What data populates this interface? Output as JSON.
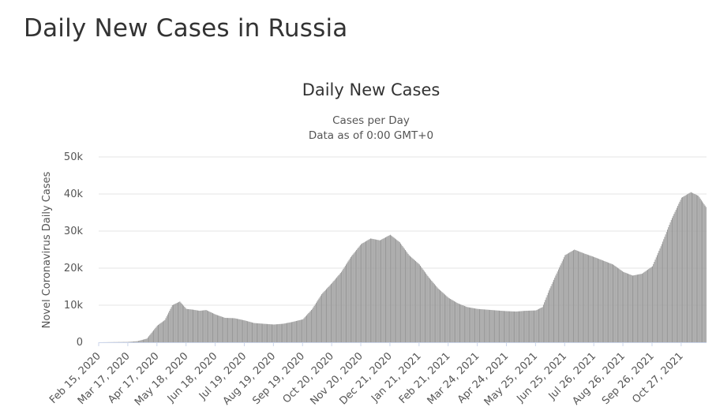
{
  "page": {
    "heading": "Daily New Cases in Russia"
  },
  "chart_data": {
    "type": "bar",
    "title": "Daily New Cases",
    "subtitle_lines": [
      "Cases per Day",
      "Data as of 0:00 GMT+0"
    ],
    "ylabel": "Novel Coronavirus Daily Cases",
    "xlabel": "",
    "ylim": [
      0,
      50000
    ],
    "y_ticks": [
      0,
      10000,
      20000,
      30000,
      40000,
      50000
    ],
    "y_tick_labels": [
      "0",
      "10k",
      "20k",
      "30k",
      "40k",
      "50k"
    ],
    "x_start": "2020-02-15",
    "x_end": "2021-11-22",
    "x_tick_labels": [
      "Feb 15, 2020",
      "Mar 17, 2020",
      "Apr 17, 2020",
      "May 18, 2020",
      "Jun 18, 2020",
      "Jul 19, 2020",
      "Aug 19, 2020",
      "Sep 19, 2020",
      "Oct 20, 2020",
      "Nov 20, 2020",
      "Dec 21, 2020",
      "Jan 21, 2021",
      "Feb 21, 2021",
      "Mar 24, 2021",
      "Apr 24, 2021",
      "May 25, 2021",
      "Jun 25, 2021",
      "Jul 26, 2021",
      "Aug 26, 2021",
      "Sep 26, 2021",
      "Oct 27, 2021"
    ],
    "bar_color": "#9a9a9a",
    "grid": true,
    "legend": "none",
    "x": [
      "2020-02-15",
      "2020-03-17",
      "2020-03-27",
      "2020-04-06",
      "2020-04-17",
      "2020-04-25",
      "2020-05-03",
      "2020-05-11",
      "2020-05-18",
      "2020-05-25",
      "2020-06-01",
      "2020-06-08",
      "2020-06-18",
      "2020-06-28",
      "2020-07-08",
      "2020-07-19",
      "2020-07-29",
      "2020-08-08",
      "2020-08-19",
      "2020-08-29",
      "2020-09-08",
      "2020-09-19",
      "2020-09-29",
      "2020-10-09",
      "2020-10-20",
      "2020-10-30",
      "2020-11-09",
      "2020-11-20",
      "2020-11-30",
      "2020-12-10",
      "2020-12-21",
      "2020-12-26",
      "2020-12-31",
      "2021-01-10",
      "2021-01-21",
      "2021-01-31",
      "2021-02-10",
      "2021-02-21",
      "2021-03-03",
      "2021-03-13",
      "2021-03-24",
      "2021-04-03",
      "2021-04-13",
      "2021-04-24",
      "2021-05-04",
      "2021-05-14",
      "2021-05-25",
      "2021-06-01",
      "2021-06-08",
      "2021-06-15",
      "2021-06-25",
      "2021-07-05",
      "2021-07-15",
      "2021-07-26",
      "2021-08-05",
      "2021-08-15",
      "2021-08-26",
      "2021-09-05",
      "2021-09-15",
      "2021-09-26",
      "2021-10-06",
      "2021-10-16",
      "2021-10-27",
      "2021-11-06",
      "2021-11-14",
      "2021-11-22"
    ],
    "values": [
      0,
      100,
      300,
      1000,
      4500,
      6000,
      10000,
      11000,
      9000,
      8800,
      8500,
      8700,
      7500,
      6600,
      6500,
      5900,
      5200,
      5000,
      4800,
      5000,
      5500,
      6200,
      9000,
      13000,
      16000,
      19000,
      23000,
      26500,
      28000,
      27500,
      29000,
      28000,
      27000,
      23500,
      21000,
      17500,
      14500,
      12000,
      10500,
      9500,
      9000,
      8800,
      8600,
      8400,
      8300,
      8500,
      8600,
      9500,
      14000,
      18000,
      23500,
      25000,
      24000,
      23000,
      22000,
      21000,
      19000,
      18000,
      18500,
      20500,
      26500,
      33000,
      39000,
      40500,
      39500,
      36500
    ]
  }
}
